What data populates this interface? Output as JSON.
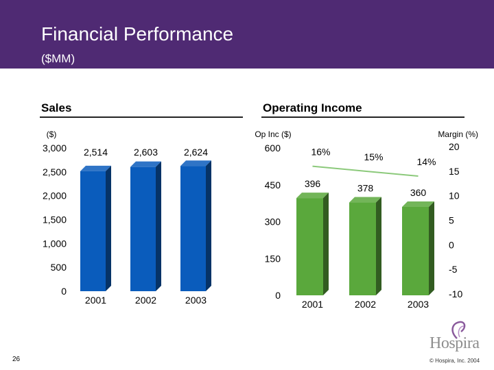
{
  "header": {
    "title": "Financial Performance",
    "subtitle": "($MM)"
  },
  "footer": {
    "page_number": "26",
    "copyright": "© Hospira, Inc. 2004",
    "logo_text": "Hospira"
  },
  "colors": {
    "header_bg": "#4f2a73",
    "sales_bar": "#0a5cbc",
    "opinc_bar": "#5aa83c",
    "margin_line": "#8bc97a"
  },
  "chart_data": [
    {
      "type": "bar",
      "title": "Sales",
      "ylabel": "($)",
      "categories": [
        "2001",
        "2002",
        "2003"
      ],
      "values": [
        2514,
        2603,
        2624
      ],
      "value_labels": [
        "2,514",
        "2,603",
        "2,624"
      ],
      "ylim": [
        0,
        3000
      ],
      "yticks": [
        0,
        500,
        1000,
        1500,
        2000,
        2500,
        3000
      ],
      "ytick_labels": [
        "0",
        "500",
        "1,000",
        "1,500",
        "2,000",
        "2,500",
        "3,000"
      ],
      "grid": false
    },
    {
      "type": "bar",
      "title": "Operating Income",
      "ylabel": "Op Inc ($)",
      "y2label": "Margin (%)",
      "categories": [
        "2001",
        "2002",
        "2003"
      ],
      "values": [
        396,
        378,
        360
      ],
      "value_labels": [
        "396",
        "378",
        "360"
      ],
      "ylim": [
        0,
        600
      ],
      "yticks": [
        0,
        150,
        300,
        450,
        600
      ],
      "ytick_labels": [
        "0",
        "150",
        "300",
        "450",
        "600"
      ],
      "y2lim": [
        -10,
        20
      ],
      "y2ticks": [
        -10,
        -5,
        0,
        5,
        10,
        15,
        20
      ],
      "y2tick_labels": [
        "-10",
        "-5",
        "0",
        "5",
        "10",
        "15",
        "20"
      ],
      "margin": [
        16,
        15,
        14
      ],
      "margin_labels": [
        "16%",
        "15%",
        "14%"
      ],
      "grid": false
    }
  ]
}
